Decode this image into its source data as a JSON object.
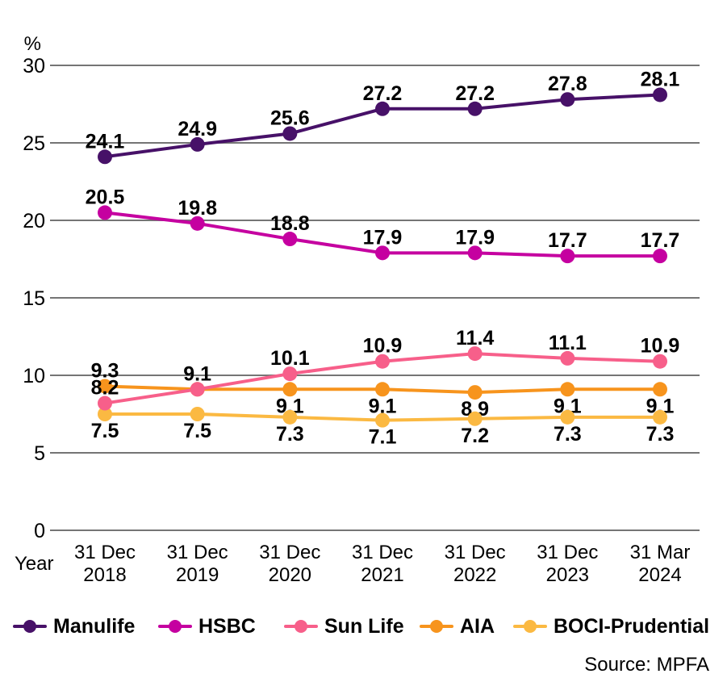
{
  "chart_data": {
    "type": "line",
    "title": "",
    "unit_label": "%",
    "x_axis_label": "Year",
    "x_tick_labels": [
      [
        "31 Dec",
        "2018"
      ],
      [
        "31 Dec",
        "2019"
      ],
      [
        "31 Dec",
        "2020"
      ],
      [
        "31 Dec",
        "2021"
      ],
      [
        "31 Dec",
        "2022"
      ],
      [
        "31 Dec",
        "2023"
      ],
      [
        "31 Mar",
        "2024"
      ]
    ],
    "y_ticks": [
      0,
      5,
      10,
      15,
      20,
      25,
      30
    ],
    "ylim": [
      0,
      30
    ],
    "grid": true,
    "legend_position": "bottom",
    "series": [
      {
        "name": "Manulife",
        "color": "#471168",
        "values": [
          24.1,
          24.9,
          25.6,
          27.2,
          27.2,
          27.8,
          28.1
        ],
        "label_positions": [
          "above",
          "above",
          "above",
          "above",
          "above",
          "above",
          "above"
        ]
      },
      {
        "name": "HSBC",
        "color": "#C500A0",
        "values": [
          20.5,
          19.8,
          18.8,
          17.9,
          17.9,
          17.7,
          17.7
        ],
        "label_positions": [
          "above",
          "above",
          "above",
          "above",
          "above",
          "above",
          "above"
        ]
      },
      {
        "name": "Sun Life",
        "color": "#F75F8A",
        "values": [
          8.2,
          9.1,
          10.1,
          10.9,
          11.4,
          11.1,
          10.9
        ],
        "label_positions": [
          "above",
          "above",
          "above",
          "above",
          "above",
          "above",
          "above"
        ]
      },
      {
        "name": "AIA",
        "color": "#F7941D",
        "values": [
          9.3,
          9.1,
          9.1,
          9.1,
          8.9,
          9.1,
          9.1
        ],
        "label_positions": [
          "above",
          "none",
          "below",
          "below",
          "below",
          "below",
          "below"
        ]
      },
      {
        "name": "BOCI-Prudential",
        "color": "#FBB942",
        "values": [
          7.5,
          7.5,
          7.3,
          7.1,
          7.2,
          7.3,
          7.3
        ],
        "label_positions": [
          "below",
          "below",
          "below",
          "below",
          "below",
          "below",
          "below"
        ]
      }
    ],
    "source": "Source: MPFA"
  }
}
